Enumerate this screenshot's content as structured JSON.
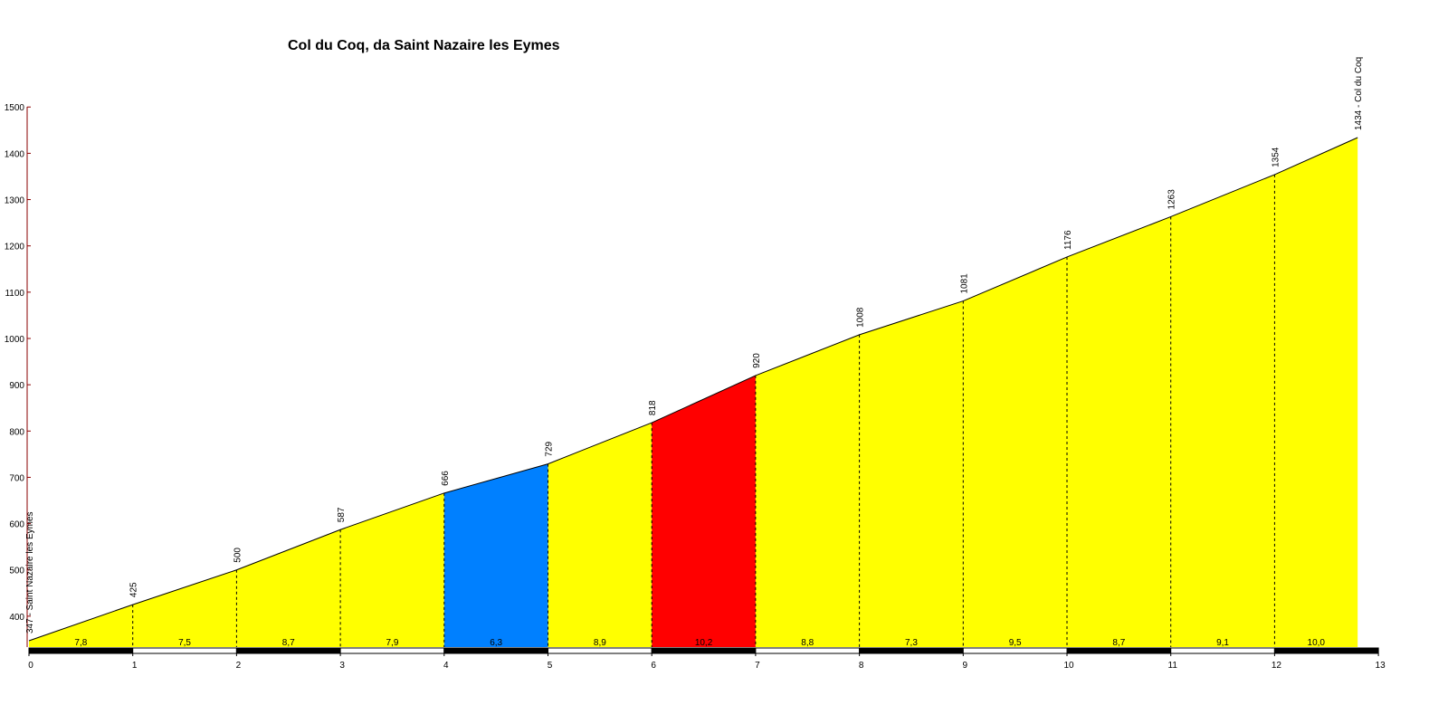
{
  "chart_data": {
    "type": "area",
    "title": "Col du Coq, da Saint Nazaire les Eymes",
    "xlabel": "",
    "ylabel": "",
    "xlim": [
      0,
      13
    ],
    "ylim": [
      320,
      1500
    ],
    "x_ticks": [
      "0",
      "1",
      "2",
      "3",
      "4",
      "5",
      "6",
      "7",
      "8",
      "9",
      "10",
      "11",
      "12",
      "13"
    ],
    "y_ticks": [
      "400",
      "500",
      "600",
      "700",
      "800",
      "900",
      "1000",
      "1100",
      "1200",
      "1300",
      "1400",
      "1500"
    ],
    "points": [
      {
        "km": 0,
        "elevation": 347
      },
      {
        "km": 1,
        "elevation": 425
      },
      {
        "km": 2,
        "elevation": 500
      },
      {
        "km": 3,
        "elevation": 587
      },
      {
        "km": 4,
        "elevation": 666
      },
      {
        "km": 5,
        "elevation": 729
      },
      {
        "km": 6,
        "elevation": 818
      },
      {
        "km": 7,
        "elevation": 920
      },
      {
        "km": 8,
        "elevation": 1008
      },
      {
        "km": 9,
        "elevation": 1081
      },
      {
        "km": 10,
        "elevation": 1176
      },
      {
        "km": 11,
        "elevation": 1263
      },
      {
        "km": 12,
        "elevation": 1354
      },
      {
        "km": 12.8,
        "elevation": 1434
      }
    ],
    "point_labels": [
      "347 - Saint Nazaire les Eymes",
      "425",
      "500",
      "587",
      "666",
      "729",
      "818",
      "920",
      "1008",
      "1081",
      "1176",
      "1263",
      "1354",
      "1434 - Col du Coq"
    ],
    "segments": [
      {
        "gradient": "7,8",
        "color": "#ffff00"
      },
      {
        "gradient": "7,5",
        "color": "#ffff00"
      },
      {
        "gradient": "8,7",
        "color": "#ffff00"
      },
      {
        "gradient": "7,9",
        "color": "#ffff00"
      },
      {
        "gradient": "6,3",
        "color": "#0080ff"
      },
      {
        "gradient": "8,9",
        "color": "#ffff00"
      },
      {
        "gradient": "10,2",
        "color": "#ff0000"
      },
      {
        "gradient": "8,8",
        "color": "#ffff00"
      },
      {
        "gradient": "7,3",
        "color": "#ffff00"
      },
      {
        "gradient": "9,5",
        "color": "#ffff00"
      },
      {
        "gradient": "8,7",
        "color": "#ffff00"
      },
      {
        "gradient": "9,1",
        "color": "#ffff00"
      },
      {
        "gradient": "10,0",
        "color": "#ffff00"
      }
    ],
    "grid": false,
    "legend": "none"
  }
}
